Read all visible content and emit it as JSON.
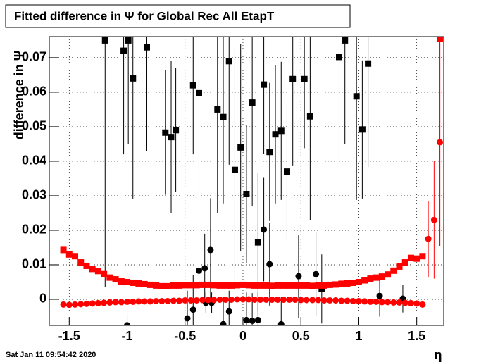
{
  "chart_data": {
    "type": "scatter",
    "title": "Fitted difference in  Ψ  for Global Rec All EtapT",
    "x_label": "η",
    "y_label": "difference in Ψ",
    "timestamp": "Sat Jan 11 09:54:42 2020",
    "xlim": [
      -1.672,
      1.733
    ],
    "ylim": [
      -0.00755,
      0.0761
    ],
    "xticks": [
      -1.5,
      -1,
      -0.5,
      0,
      0.5,
      1,
      1.5
    ],
    "yticks": [
      0,
      0.01,
      0.02,
      0.03,
      0.04,
      0.05,
      0.06,
      0.07
    ],
    "grid": true,
    "series": [
      {
        "color": "#000000",
        "marker": "square",
        "x": [
          -1.19,
          -1.03,
          -0.99,
          -0.95,
          -0.83,
          -0.67,
          -0.62,
          -0.58,
          -0.43,
          -0.38,
          -0.22,
          -0.17,
          -0.12,
          -0.07,
          -0.02,
          0.03,
          0.08,
          0.13,
          0.18,
          0.23,
          0.28,
          0.33,
          0.38,
          0.43,
          0.53,
          0.58,
          0.68,
          0.83,
          0.88,
          0.98,
          1.03,
          1.08
        ],
        "values": [
          0.075,
          0.072,
          0.075,
          0.064,
          0.073,
          0.0483,
          0.047,
          0.049,
          0.062,
          0.0597,
          0.055,
          0.0528,
          0.069,
          0.0375,
          0.044,
          0.0305,
          0.057,
          0.0165,
          0.0622,
          0.0427,
          0.0478,
          0.0488,
          0.037,
          0.0638,
          0.0638,
          0.053,
          0.003,
          0.0702,
          0.075,
          0.0588,
          0.0492,
          0.0683
        ],
        "errors": [
          0.0715,
          0.03,
          0.03,
          0.035,
          0.03,
          0.018,
          0.022,
          0.018,
          0.02,
          0.03,
          0.03,
          0.025,
          0.03,
          0.035,
          0.03,
          0.02,
          0.03,
          0.02,
          0.02,
          0.02,
          0.02,
          0.02,
          0.02,
          0.025,
          0.02,
          0.03,
          0.01,
          0.03,
          0.03,
          0.03,
          0.02,
          0.03
        ]
      },
      {
        "color": "#000000",
        "marker": "circle",
        "x": [
          -1.0,
          -0.48,
          -0.43,
          -0.38,
          -0.33,
          -0.32,
          -0.28,
          -0.27,
          -0.17,
          -0.12,
          0.03,
          0.08,
          0.13,
          0.18,
          0.23,
          0.33,
          0.48,
          0.63,
          1.18,
          1.38
        ],
        "values": [
          -0.0075,
          -0.0055,
          -0.003,
          0.0083,
          0.009,
          -0.001,
          0.0143,
          -0.001,
          -0.0072,
          -0.0035,
          -0.006,
          -0.0062,
          -0.006,
          0.0202,
          0.0102,
          -0.0072,
          0.0067,
          0.0073,
          0.001,
          0.0002
        ],
        "errors": [
          0.005,
          0.008,
          0.01,
          0.012,
          0.01,
          0.003,
          0.015,
          0.003,
          0.008,
          0.006,
          0.008,
          0.008,
          0.008,
          0.015,
          0.012,
          0.008,
          0.012,
          0.012,
          0.006,
          0.004
        ]
      },
      {
        "color": "#ff0000",
        "marker": "square",
        "x": [
          -1.55,
          -1.5,
          -1.45,
          -1.4,
          -1.35,
          -1.3,
          -1.25,
          -1.2,
          -1.15,
          -1.1,
          -1.05,
          -1.0,
          -0.95,
          -0.9,
          -0.85,
          -0.8,
          -0.75,
          -0.7,
          -0.65,
          -0.6,
          -0.55,
          -0.5,
          -0.45,
          -0.4,
          -0.35,
          -0.3,
          -0.25,
          -0.2,
          -0.15,
          -0.1,
          -0.05,
          0,
          0.05,
          0.1,
          0.15,
          0.2,
          0.25,
          0.3,
          0.35,
          0.4,
          0.45,
          0.5,
          0.55,
          0.6,
          0.65,
          0.7,
          0.75,
          0.8,
          0.85,
          0.9,
          0.95,
          1.0,
          1.05,
          1.1,
          1.15,
          1.2,
          1.25,
          1.3,
          1.35,
          1.4,
          1.45,
          1.5,
          1.55,
          1.7
        ],
        "values": [
          0.0143,
          0.013,
          0.0125,
          0.0107,
          0.0097,
          0.0088,
          0.0082,
          0.0073,
          0.0063,
          0.0058,
          0.0052,
          0.005,
          0.0048,
          0.0046,
          0.0044,
          0.0042,
          0.004,
          0.0038,
          0.0038,
          0.004,
          0.004,
          0.0041,
          0.0041,
          0.0041,
          0.0042,
          0.0042,
          0.0041,
          0.004,
          0.004,
          0.004,
          0.0041,
          0.0042,
          0.0041,
          0.004,
          0.004,
          0.004,
          0.0039,
          0.004,
          0.004,
          0.004,
          0.004,
          0.004,
          0.004,
          0.0039,
          0.004,
          0.004,
          0.0042,
          0.0043,
          0.0045,
          0.0046,
          0.0048,
          0.005,
          0.0055,
          0.006,
          0.0063,
          0.0066,
          0.0072,
          0.0083,
          0.0095,
          0.0107,
          0.012,
          0.0118,
          0.0125,
          0.0755
        ],
        "errors": [
          null,
          null,
          null,
          null,
          null,
          null,
          null,
          null,
          null,
          null,
          null,
          null,
          null,
          null,
          null,
          null,
          null,
          null,
          null,
          null,
          null,
          null,
          null,
          null,
          null,
          null,
          null,
          null,
          null,
          null,
          null,
          null,
          null,
          null,
          null,
          null,
          null,
          null,
          null,
          null,
          null,
          null,
          null,
          null,
          null,
          null,
          null,
          null,
          null,
          null,
          null,
          null,
          null,
          null,
          null,
          null,
          null,
          null,
          null,
          null,
          null,
          null,
          null,
          0.06
        ]
      },
      {
        "color": "#ff0000",
        "marker": "circle",
        "x": [
          -1.55,
          -1.5,
          -1.45,
          -1.4,
          -1.35,
          -1.3,
          -1.25,
          -1.2,
          -1.15,
          -1.1,
          -1.05,
          -1.0,
          -0.95,
          -0.9,
          -0.85,
          -0.8,
          -0.75,
          -0.7,
          -0.65,
          -0.6,
          -0.55,
          -0.5,
          -0.45,
          -0.4,
          -0.35,
          -0.3,
          -0.25,
          -0.2,
          -0.15,
          -0.1,
          -0.05,
          0,
          0.05,
          0.1,
          0.15,
          0.2,
          0.25,
          0.3,
          0.35,
          0.4,
          0.45,
          0.5,
          0.55,
          0.6,
          0.65,
          0.7,
          0.75,
          0.8,
          0.85,
          0.9,
          0.95,
          1.0,
          1.05,
          1.1,
          1.15,
          1.2,
          1.25,
          1.3,
          1.35,
          1.4,
          1.45,
          1.5,
          1.55,
          1.6,
          1.65,
          1.7
        ],
        "values": [
          -0.0015,
          -0.0016,
          -0.0015,
          -0.0014,
          -0.0013,
          -0.0012,
          -0.0011,
          -0.001,
          -0.0009,
          -0.0008,
          -0.0008,
          -0.0007,
          -0.0007,
          -0.0006,
          -0.0006,
          -0.0006,
          -0.0005,
          -0.0005,
          -0.0005,
          -0.0004,
          -0.0004,
          -0.0003,
          -0.0003,
          -0.0003,
          -0.0002,
          -0.0002,
          -0.0002,
          -0.0001,
          -0.0001,
          -0.0001,
          0,
          0,
          0,
          -0.0001,
          -0.0001,
          -0.0001,
          -0.0001,
          -0.0001,
          -0.0001,
          -0.0001,
          -0.0001,
          -0.0002,
          -0.0002,
          -0.0002,
          -0.0002,
          -0.0003,
          -0.0003,
          -0.0003,
          -0.0004,
          -0.0004,
          -0.0005,
          -0.0005,
          -0.0006,
          -0.0007,
          -0.0007,
          -0.0008,
          -0.0008,
          -0.0009,
          -0.0009,
          -0.001,
          -0.0011,
          -0.0012,
          -0.0015,
          0.0175,
          0.023,
          0.0455
        ],
        "errors": [
          null,
          null,
          null,
          null,
          null,
          null,
          null,
          null,
          null,
          null,
          null,
          null,
          null,
          null,
          null,
          null,
          null,
          null,
          null,
          null,
          null,
          null,
          null,
          null,
          null,
          null,
          null,
          null,
          null,
          null,
          null,
          null,
          null,
          null,
          null,
          null,
          null,
          null,
          null,
          null,
          null,
          null,
          null,
          null,
          null,
          null,
          null,
          null,
          null,
          null,
          null,
          null,
          null,
          null,
          null,
          null,
          null,
          null,
          null,
          null,
          null,
          null,
          null,
          0.011,
          0.017,
          0.03
        ]
      }
    ]
  }
}
